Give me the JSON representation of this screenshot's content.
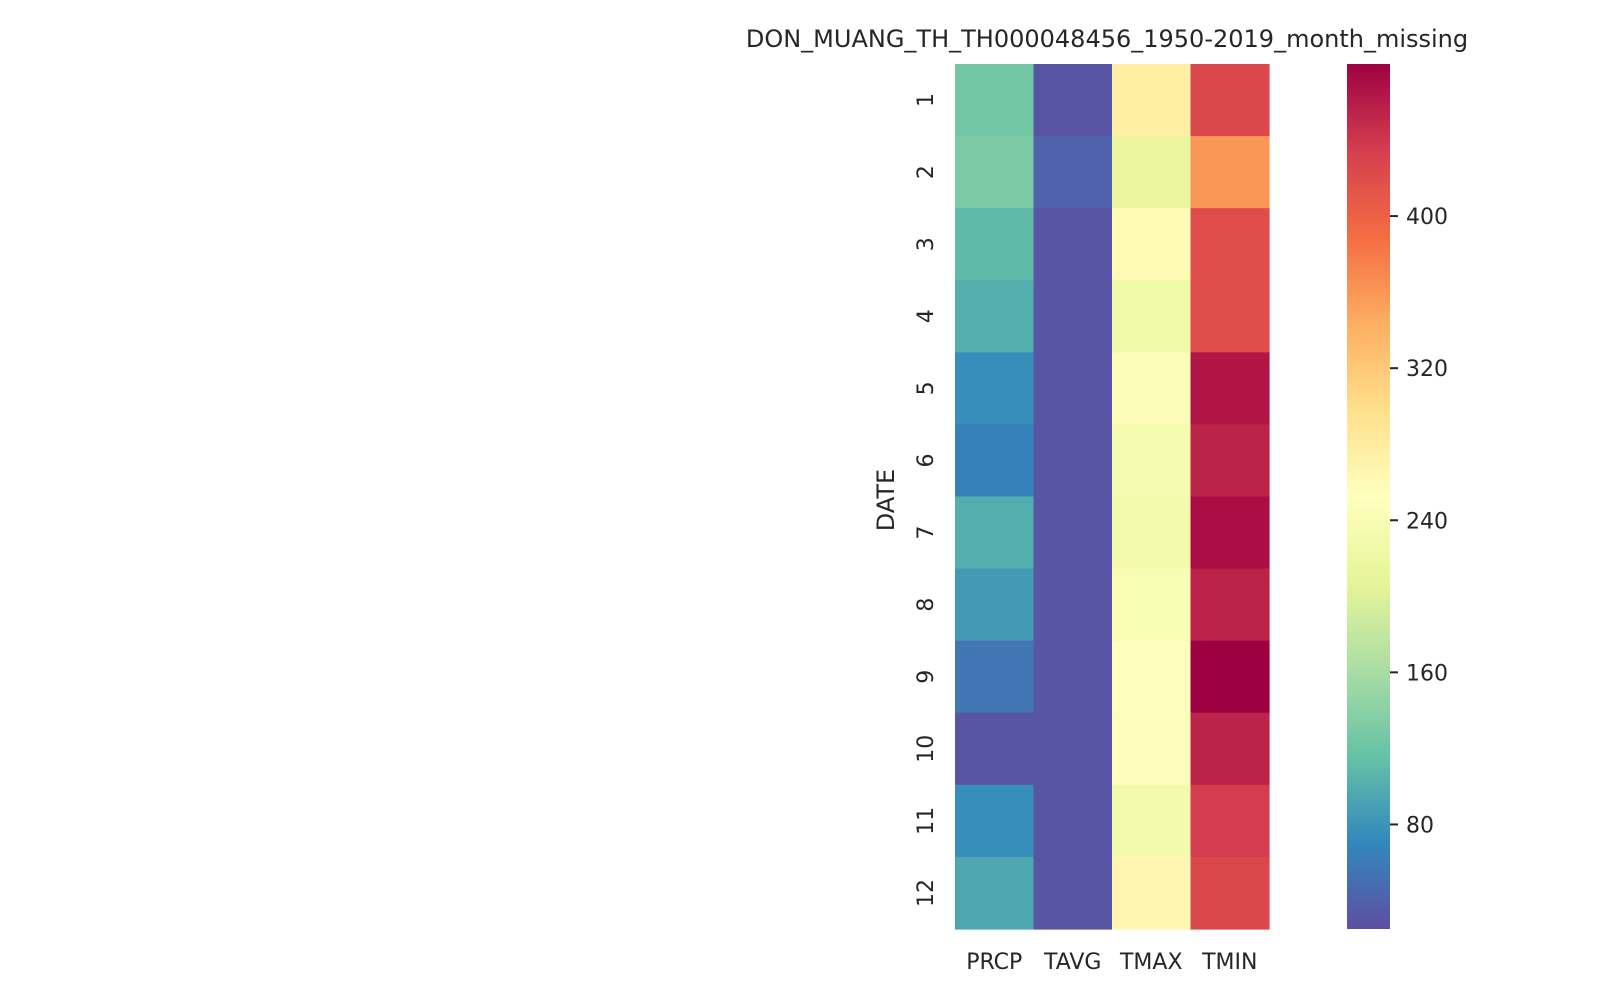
{
  "chart_data": {
    "type": "heatmap",
    "title": "DON_MUANG_TH_TH000048456_1950-2019_month_missing",
    "ylabel": "DATE",
    "xlabel": "",
    "columns": [
      "PRCP",
      "TAVG",
      "TMAX",
      "TMIN"
    ],
    "rows": [
      "1",
      "2",
      "3",
      "4",
      "5",
      "6",
      "7",
      "8",
      "9",
      "10",
      "11",
      "12"
    ],
    "values": [
      [
        125,
        30,
        275,
        425
      ],
      [
        130,
        40,
        215,
        360
      ],
      [
        110,
        30,
        260,
        420
      ],
      [
        100,
        30,
        225,
        420
      ],
      [
        75,
        30,
        245,
        465
      ],
      [
        65,
        30,
        235,
        455
      ],
      [
        100,
        30,
        230,
        470
      ],
      [
        85,
        30,
        240,
        455
      ],
      [
        55,
        30,
        250,
        480
      ],
      [
        30,
        30,
        255,
        455
      ],
      [
        75,
        30,
        230,
        435
      ],
      [
        95,
        30,
        265,
        425
      ]
    ],
    "colorbar": {
      "colormap": "Spectral_r",
      "vmin": 25,
      "vmax": 480,
      "ticks": [
        80,
        160,
        240,
        320,
        400
      ]
    },
    "grid": false,
    "legend": "colorbar-right"
  }
}
